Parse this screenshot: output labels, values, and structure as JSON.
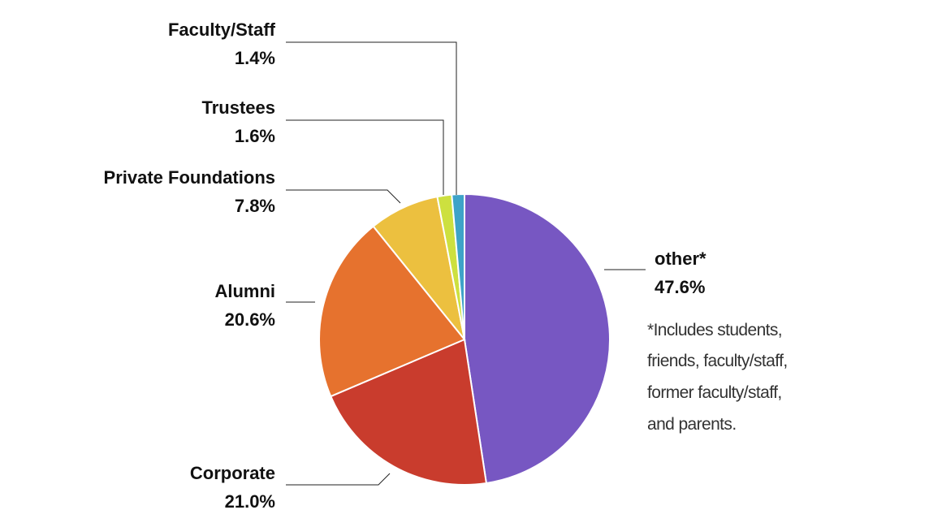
{
  "chart_data": {
    "type": "pie",
    "start": "12 o'clock, clockwise",
    "slices": [
      {
        "label": "other*",
        "value_label": "47.6%",
        "value": 47.6,
        "color": "#7757c2"
      },
      {
        "label": "Corporate",
        "value_label": "21.0%",
        "value": 21.0,
        "color": "#c93c2d"
      },
      {
        "label": "Alumni",
        "value_label": "20.6%",
        "value": 20.6,
        "color": "#e6722e"
      },
      {
        "label": "Private Foundations",
        "value_label": "7.8%",
        "value": 7.8,
        "color": "#ecc03f"
      },
      {
        "label": "Trustees",
        "value_label": "1.6%",
        "value": 1.6,
        "color": "#cde03f"
      },
      {
        "label": "Faculty/Staff",
        "value_label": "1.4%",
        "value": 1.4,
        "color": "#3ea3c8"
      }
    ],
    "footnote": [
      "*Includes students,",
      "friends, faculty/staff,",
      "former faculty/staff,",
      "and parents."
    ]
  }
}
